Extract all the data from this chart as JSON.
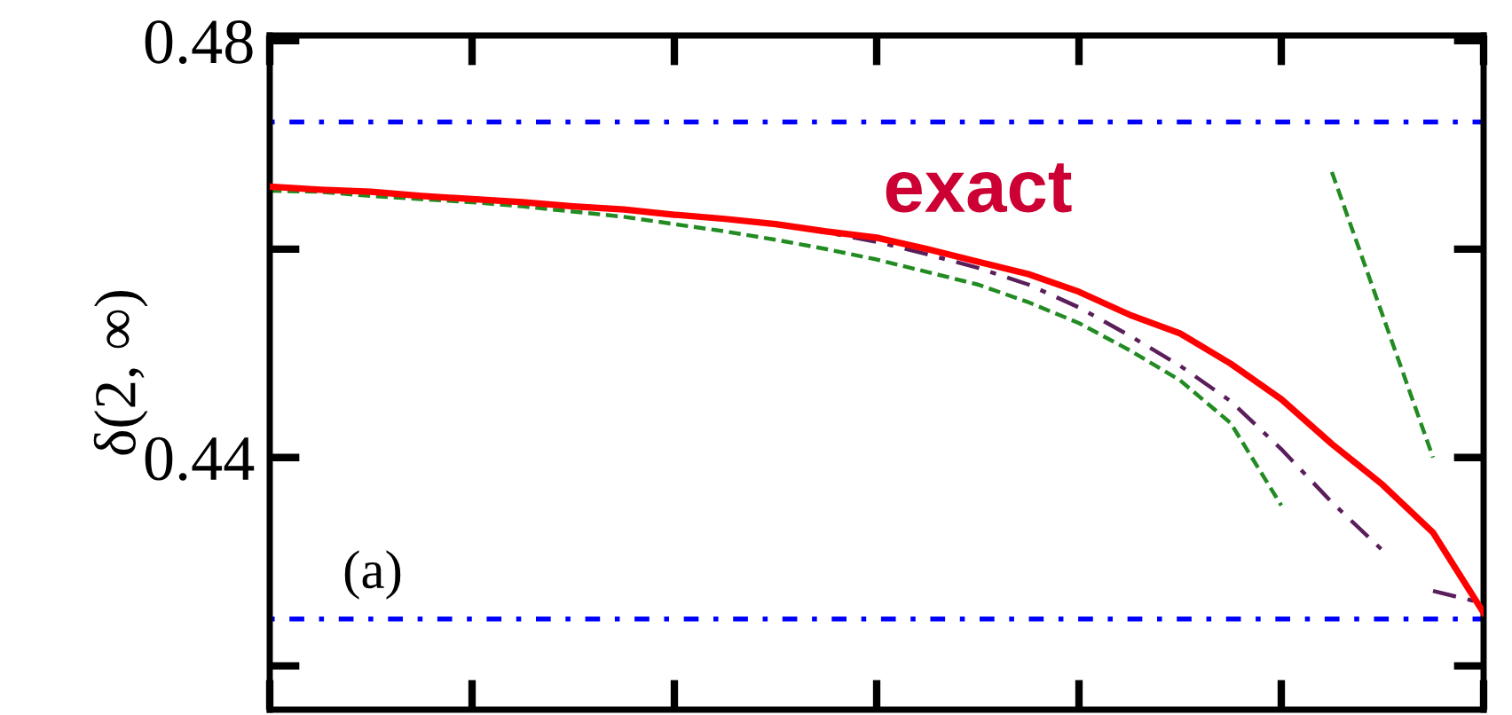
{
  "chart_data": {
    "type": "line",
    "ylabel": "δ(2, ∞)",
    "tick_labels": "y",
    "categories": [
      null,
      null,
      null,
      null,
      null,
      null,
      null,
      null,
      null,
      null,
      null,
      null,
      null,
      null,
      null,
      null,
      null,
      null,
      null,
      null,
      null,
      null,
      null,
      null,
      null
    ],
    "ylim": [
      0.4158,
      0.4805
    ],
    "yticks": [
      0.44,
      0.48
    ],
    "series": [
      {
        "color": "#228b22",
        "line_style": "dashed",
        "values": [
          0.4656,
          0.4655,
          0.4651,
          0.4648,
          0.4645,
          0.4641,
          0.4636,
          0.4631,
          0.4624,
          0.4617,
          0.4609,
          0.46,
          0.459,
          0.4578,
          0.4566,
          0.4549,
          0.4529,
          0.4503,
          0.4474,
          0.4433,
          0.4354,
          null,
          null,
          null,
          null
        ]
      },
      {
        "color": "#228b22",
        "line_style": "dashed",
        "values": [
          null,
          null,
          null,
          null,
          null,
          null,
          null,
          null,
          null,
          null,
          null,
          null,
          null,
          null,
          null,
          null,
          null,
          null,
          null,
          null,
          null,
          0.4674,
          0.4537,
          0.44,
          null
        ]
      },
      {
        "color": "#5a1e5a",
        "line_style": "dashdot",
        "values": [
          0.466,
          0.4657,
          0.4655,
          0.4651,
          0.4648,
          0.4645,
          0.4641,
          0.4638,
          0.4633,
          0.4629,
          0.4624,
          0.4616,
          0.4607,
          0.4595,
          0.4582,
          0.4566,
          0.4544,
          0.4517,
          0.4488,
          0.4454,
          0.4408,
          0.4357,
          0.4311,
          null,
          null
        ]
      },
      {
        "color": "#5a1e5a",
        "line_style": "dashdot",
        "values": [
          null,
          null,
          null,
          null,
          null,
          null,
          null,
          null,
          null,
          null,
          null,
          null,
          null,
          null,
          null,
          null,
          null,
          null,
          null,
          null,
          null,
          null,
          null,
          0.4272,
          0.426
        ]
      },
      {
        "name": "exact",
        "color": "#ff0000",
        "line_style": "solid",
        "values": [
          0.466,
          0.4657,
          0.4655,
          0.4651,
          0.4648,
          0.4645,
          0.4641,
          0.4638,
          0.4633,
          0.4629,
          0.4624,
          0.4617,
          0.4611,
          0.46,
          0.4588,
          0.4576,
          0.4559,
          0.4537,
          0.4519,
          0.449,
          0.4456,
          0.4413,
          0.4374,
          0.4328,
          0.4251
        ]
      }
    ],
    "ref_lines": [
      {
        "axis": "y",
        "value": 0.4722,
        "color": "#0000ff",
        "line_style": "dotted"
      },
      {
        "axis": "y",
        "value": 0.4245,
        "color": "#0000ff",
        "line_style": "dotted"
      }
    ],
    "annotations": [
      "(a)"
    ]
  }
}
